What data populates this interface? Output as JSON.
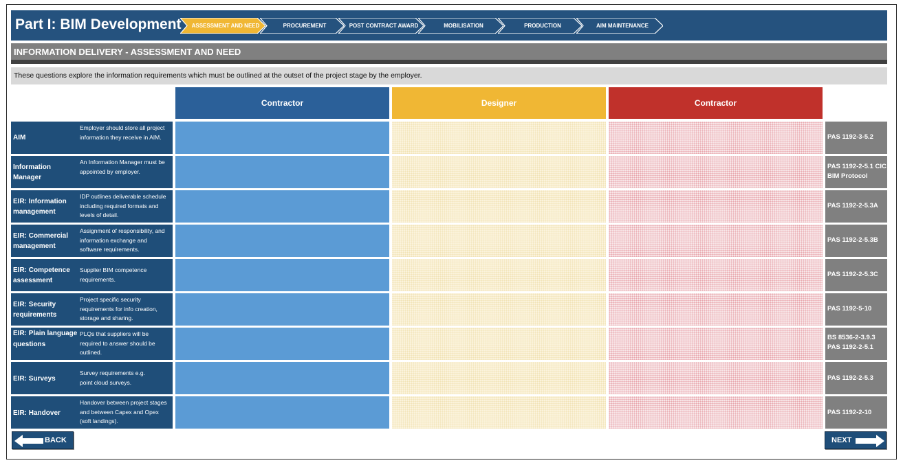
{
  "header": {
    "title": "Part I: BIM Development",
    "steps": [
      {
        "label": "ASSESSMENT AND NEED",
        "active": true
      },
      {
        "label": "PROCUREMENT",
        "active": false
      },
      {
        "label": "POST CONTRACT AWARD",
        "active": false
      },
      {
        "label": "MOBILISATION",
        "active": false
      },
      {
        "label": "PRODUCTION",
        "active": false
      },
      {
        "label": "AIM MAINTENANCE",
        "active": false
      }
    ]
  },
  "section": {
    "title": "INFORMATION DELIVERY - ASSESSMENT AND NEED",
    "intro": "These questions explore the information requirements which must be outlined at the outset of the project stage by the employer."
  },
  "columns": [
    {
      "label": "Contractor",
      "color": "#2b6099"
    },
    {
      "label": "Designer",
      "color": "#f0b734"
    },
    {
      "label": "Contractor",
      "color": "#c0312b"
    }
  ],
  "rows": [
    {
      "name": "AIM",
      "desc": "Employer should store all project information they receive in AIM.",
      "ref": "PAS 1192-3-5.2"
    },
    {
      "name": "Information Manager",
      "desc": "An Information Manager must be appointed by employer.",
      "ref": "PAS 1192-2-5.1 CIC BIM Protocol"
    },
    {
      "name": "EIR: Information management",
      "desc": "IDP outlines deliverable schedule including required formats and levels of detail.",
      "ref": "PAS 1192-2-5.3A"
    },
    {
      "name": "EIR: Commercial management",
      "desc": "Assignment of responsibility, and information exchange and software requirements.",
      "ref": "PAS 1192-2-5.3B"
    },
    {
      "name": "EIR: Competence assessment",
      "desc": "Supplier BIM competence requirements.",
      "ref": "PAS 1192-2-5.3C"
    },
    {
      "name": "EIR: Security requirements",
      "desc": "Project specific security requirements for info creation, storage and sharing.",
      "ref": "PAS 1192-5-10"
    },
    {
      "name": "EIR: Plain language questions",
      "desc": "PLQs that suppliers will be required to answer should be outlined.",
      "ref": "BS 8536-2-3.9.3 PAS 1192-2-5.1"
    },
    {
      "name": "EIR: Surveys",
      "desc": "Survey requirements e.g. point cloud surveys.",
      "ref": "PAS 1192-2-5.3"
    },
    {
      "name": "EIR: Handover",
      "desc": "Handover between project stages and between Capex and Opex (soft landings).",
      "ref": "PAS 1192-2-10"
    }
  ],
  "nav": {
    "back_label": "BACK",
    "next_label": "NEXT"
  },
  "colors": {
    "header": "#25527e",
    "row_label": "#1f4e79",
    "active_step": "#f0b734",
    "reference": "#808080"
  }
}
